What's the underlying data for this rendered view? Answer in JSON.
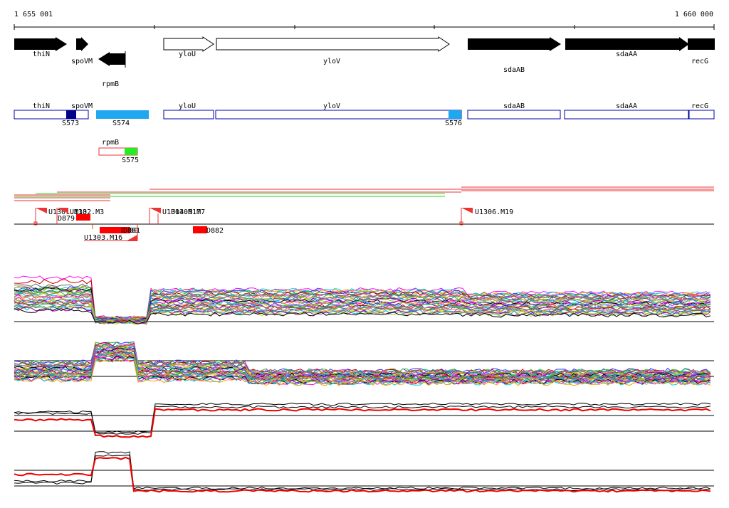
{
  "ruler": {
    "start_label": "1 655 001",
    "end_label": "1 660 000"
  },
  "genes": [
    {
      "name": "thiN",
      "strand": "+",
      "style": "filled"
    },
    {
      "name": "spoVM",
      "strand": "+",
      "style": "filled"
    },
    {
      "name": "rpmB",
      "strand": "-",
      "style": "filled"
    },
    {
      "name": "yloU",
      "strand": "+",
      "style": "open"
    },
    {
      "name": "yloV",
      "strand": "+",
      "style": "open"
    },
    {
      "name": "sdaAB",
      "strand": "+",
      "style": "filled"
    },
    {
      "name": "sdaAA",
      "strand": "+",
      "style": "filled"
    },
    {
      "name": "recG",
      "strand": "+",
      "style": "filled"
    }
  ],
  "segments": {
    "row1": [
      {
        "label": "thiN"
      },
      {
        "label": "spoVM"
      },
      {
        "label": "yloU"
      },
      {
        "label": "yloV"
      },
      {
        "label": "sdaAB"
      },
      {
        "label": "sdaAA"
      },
      {
        "label": "recG"
      }
    ],
    "row2": [
      {
        "label": "rpmB"
      }
    ],
    "features": [
      {
        "label": "S573",
        "color": "#00008b"
      },
      {
        "label": "S574",
        "color": "#1fa8f0"
      },
      {
        "label": "S576",
        "color": "#1fa8f0"
      },
      {
        "label": "S575",
        "color": "#22ee22"
      }
    ]
  },
  "markers": [
    {
      "label": "U1301.M13"
    },
    {
      "label": "U1302.M3"
    },
    {
      "label": "D879"
    },
    {
      "label": "U1303.M16"
    },
    {
      "label": "D881"
    },
    {
      "label": "D880"
    },
    {
      "label": "U1304.M17"
    },
    {
      "label": "U1305.M7"
    },
    {
      "label": "D882"
    },
    {
      "label": "U1306.M19"
    }
  ],
  "colors": {
    "gene_fill": "#000000",
    "segment_outline": "#0000aa",
    "marker": "#ff0000",
    "read_red": "#ee3333",
    "read_green": "#33cc33"
  }
}
